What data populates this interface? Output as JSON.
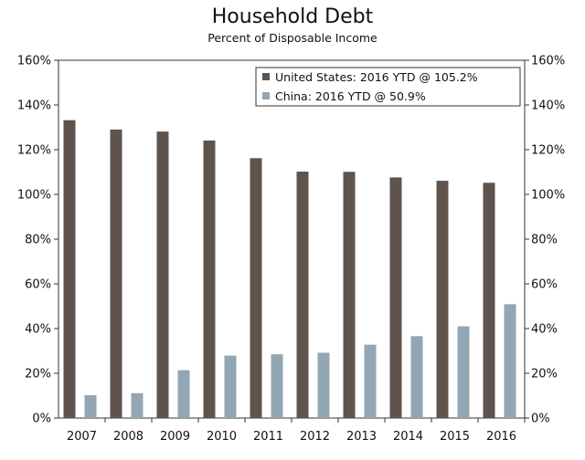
{
  "chart_data": {
    "type": "bar",
    "title": "Household Debt",
    "subtitle": "Percent of Disposable Income",
    "categories": [
      "2007",
      "2008",
      "2009",
      "2010",
      "2011",
      "2012",
      "2013",
      "2014",
      "2015",
      "2016"
    ],
    "series": [
      {
        "name": "United States: 2016 YTD @ 105.2%",
        "color": "#5e544d",
        "values": [
          133.2,
          129.0,
          128.1,
          124.1,
          116.2,
          110.2,
          110.1,
          107.6,
          106.1,
          105.2
        ]
      },
      {
        "name": "China: 2016 YTD @ 50.9%",
        "color": "#93a6b3",
        "values": [
          10.2,
          11.1,
          21.4,
          27.9,
          28.5,
          29.2,
          32.8,
          36.6,
          41.0,
          50.9
        ]
      }
    ],
    "ylim": [
      0,
      160
    ],
    "yticks": [
      "0%",
      "20%",
      "40%",
      "60%",
      "80%",
      "100%",
      "120%",
      "140%",
      "160%"
    ],
    "ytick_values": [
      0,
      20,
      40,
      60,
      80,
      100,
      120,
      140,
      160
    ],
    "xlabel": "",
    "ylabel": "",
    "legend_position": "top-right",
    "grid": false
  }
}
